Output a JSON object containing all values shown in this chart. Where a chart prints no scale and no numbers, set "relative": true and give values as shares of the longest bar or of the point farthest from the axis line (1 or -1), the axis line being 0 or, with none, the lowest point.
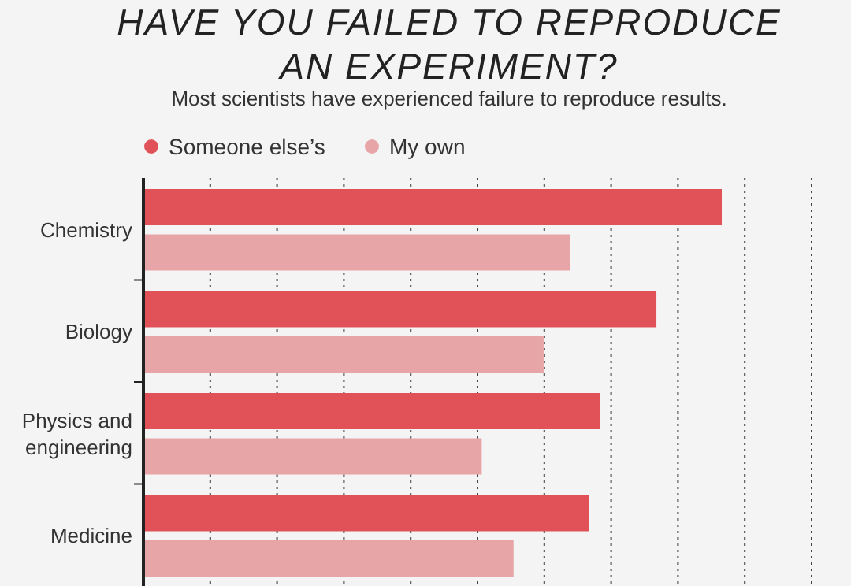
{
  "chart_data": {
    "type": "bar",
    "orientation": "horizontal",
    "relative": true,
    "title": "HAVE YOU FAILED TO REPRODUCE AN EXPERIMENT?",
    "subtitle": "Most scientists have experienced failure to reproduce results.",
    "categories": [
      "Chemistry",
      "Biology",
      "Physics and engineering",
      "Medicine"
    ],
    "series": [
      {
        "name": "Someone else’s",
        "color": "#e05258",
        "values": [
          1,
          0.887,
          0.789,
          0.771
        ]
      },
      {
        "name": "My own",
        "color": "#e8a5a8",
        "values": [
          0.738,
          0.692,
          0.585,
          0.64
        ]
      }
    ],
    "grid": "x",
    "legend": "top"
  }
}
